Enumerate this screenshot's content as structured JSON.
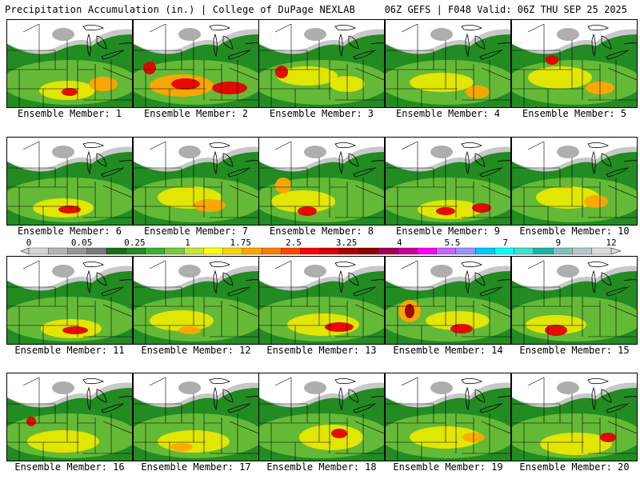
{
  "header": {
    "left": "Precipitation Accumulation (in.) | College of DuPage NEXLAB",
    "right": "06Z GEFS | F048 Valid: 06Z THU SEP 25 2025"
  },
  "members": [
    {
      "label": "Ensemble Member: 1"
    },
    {
      "label": "Ensemble Member: 2"
    },
    {
      "label": "Ensemble Member: 3"
    },
    {
      "label": "Ensemble Member: 4"
    },
    {
      "label": "Ensemble Member: 5"
    },
    {
      "label": "Ensemble Member: 6"
    },
    {
      "label": "Ensemble Member: 7"
    },
    {
      "label": "Ensemble Member: 8"
    },
    {
      "label": "Ensemble Member: 9"
    },
    {
      "label": "Ensemble Member: 10"
    },
    {
      "label": "Ensemble Member: 11"
    },
    {
      "label": "Ensemble Member: 12"
    },
    {
      "label": "Ensemble Member: 13"
    },
    {
      "label": "Ensemble Member: 14"
    },
    {
      "label": "Ensemble Member: 15"
    },
    {
      "label": "Ensemble Member: 16"
    },
    {
      "label": "Ensemble Member: 17"
    },
    {
      "label": "Ensemble Member: 18"
    },
    {
      "label": "Ensemble Member: 19"
    },
    {
      "label": "Ensemble Member: 20"
    }
  ],
  "scale": {
    "ticks": [
      "0",
      "0.05",
      "0.25",
      "1",
      "1.75",
      "2.5",
      "3.25",
      "4",
      "5.5",
      "7",
      "9",
      "12"
    ],
    "colors": [
      "#d4d4d4",
      "#b4b4b4",
      "#969696",
      "#787878",
      "#1a6e1a",
      "#228b22",
      "#3cb030",
      "#78c83c",
      "#c8e632",
      "#ffff00",
      "#ffd200",
      "#ffa500",
      "#ff7f00",
      "#ff4500",
      "#ff0000",
      "#d20000",
      "#aa0000",
      "#8b0000",
      "#a00050",
      "#c80096",
      "#ff00ff",
      "#c864ff",
      "#9696ff",
      "#00c8ff",
      "#00ffff",
      "#40e0d0",
      "#20b2aa",
      "#80c0c0",
      "#b4c8c8",
      "#dcdcdc"
    ]
  },
  "field_colors": {
    "none": "#ffffff",
    "trace": "#c8c8c8",
    "light": "#9a9a9a",
    "green": "#228b22",
    "lightgreen": "#6cbf3a",
    "yellow": "#e8e800",
    "orange": "#ffa500",
    "red": "#e60000",
    "darkred": "#a00000"
  }
}
